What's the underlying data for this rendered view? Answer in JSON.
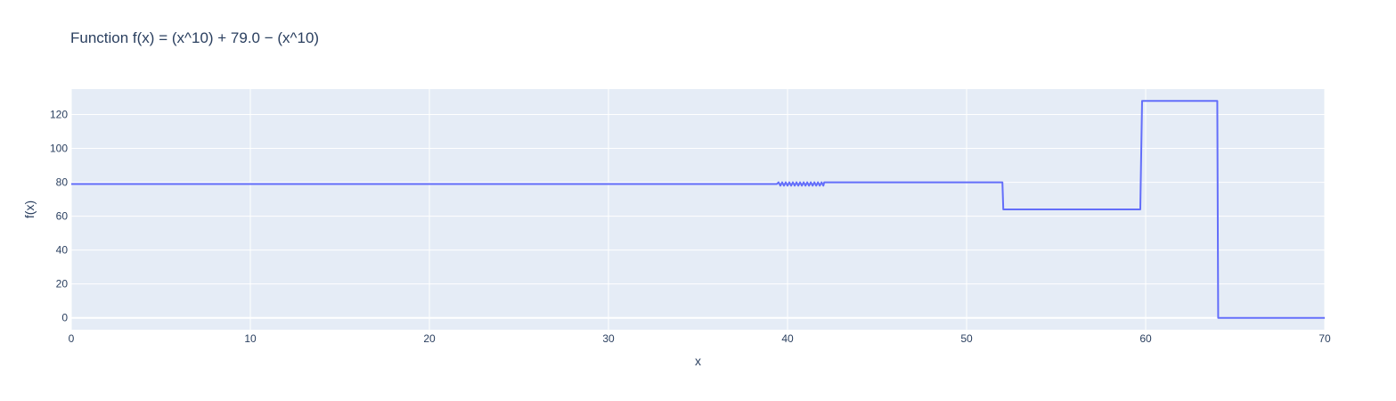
{
  "chart_data": {
    "type": "line",
    "title": "Function f(x) = (x^10) + 79.0 − (x^10)",
    "xlabel": "x",
    "ylabel": "f(x)",
    "xlim": [
      0,
      70
    ],
    "ylim": [
      -7,
      135
    ],
    "x_ticks": [
      0,
      10,
      20,
      30,
      40,
      50,
      60,
      70
    ],
    "y_ticks": [
      0,
      20,
      40,
      60,
      80,
      100,
      120
    ],
    "grid": true,
    "legend": "none",
    "series": [
      {
        "color": "#636efa",
        "x": [
          0,
          39.4,
          39.5,
          39.6,
          39.7,
          39.8,
          39.9,
          40.0,
          40.1,
          40.2,
          40.3,
          40.4,
          40.5,
          40.6,
          40.7,
          40.8,
          40.9,
          41.0,
          41.1,
          41.2,
          41.3,
          41.4,
          41.5,
          41.6,
          41.7,
          41.8,
          41.9,
          42.0,
          42.05,
          52.0,
          52.05,
          59.7,
          59.8,
          64.0,
          64.05,
          70
        ],
        "y": [
          79,
          79,
          80,
          78,
          80,
          78,
          80,
          78,
          80,
          78,
          80,
          78,
          80,
          78,
          80,
          78,
          80,
          78,
          80,
          78,
          80,
          78,
          80,
          78,
          80,
          78,
          80,
          78,
          80,
          80,
          64,
          64,
          128,
          128,
          0,
          0
        ]
      }
    ],
    "colors": {
      "plot_background": "#e5ecf6",
      "grid": "#ffffff",
      "line": "#636efa"
    }
  }
}
